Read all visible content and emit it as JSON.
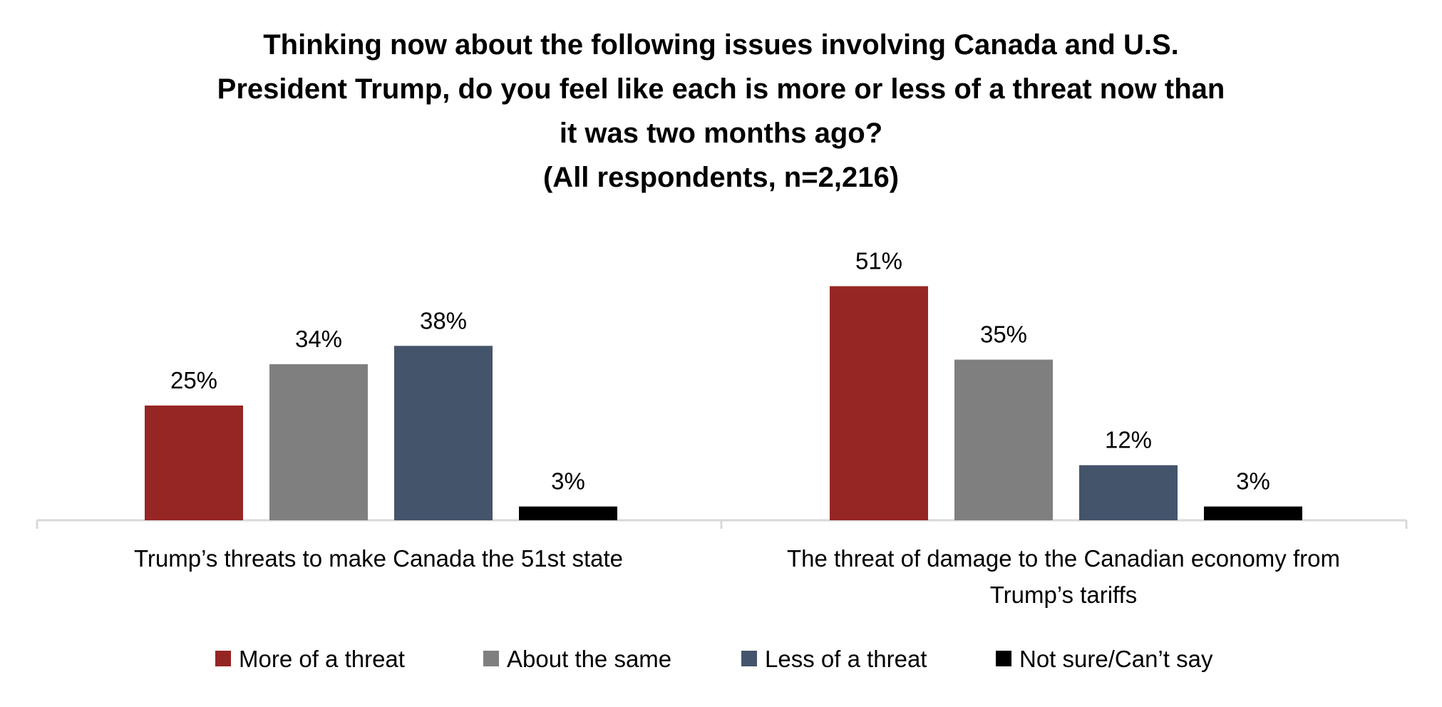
{
  "chart_data": {
    "type": "bar",
    "title_lines": [
      "Thinking now about the following issues involving Canada and U.S.",
      "President Trump, do you feel like each is more or less of a threat now than",
      "it was two months ago?",
      "(All respondents, n=2,216)"
    ],
    "categories": [
      [
        "Trump’s threats to make Canada the 51st state"
      ],
      [
        "The threat of damage to the Canadian economy from",
        "Trump’s tariffs"
      ]
    ],
    "series": [
      {
        "name": "More of a threat",
        "color": "#962623",
        "values": [
          25,
          51
        ]
      },
      {
        "name": "About the same",
        "color": "#7f7f7f",
        "values": [
          34,
          35
        ]
      },
      {
        "name": "Less of a threat",
        "color": "#44546a",
        "values": [
          38,
          12
        ]
      },
      {
        "name": "Not sure/Can’t say",
        "color": "#000000",
        "values": [
          3,
          3
        ]
      }
    ],
    "value_suffix": "%",
    "ylim": [
      0,
      60
    ],
    "grid": false,
    "legend_position": "bottom"
  }
}
